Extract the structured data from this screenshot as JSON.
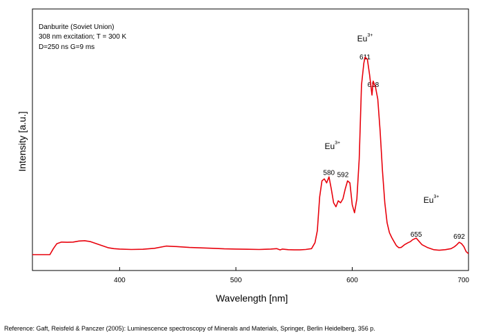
{
  "chart_data": {
    "type": "line",
    "xlabel": "Wavelength [nm]",
    "ylabel": "Intensity [a.u.]",
    "xlim": [
      325,
      700
    ],
    "ylim": [
      0,
      1.0
    ],
    "x_ticks": [
      "400",
      "500",
      "600",
      "700"
    ],
    "info_lines": [
      "Danburite (Soviet Union)",
      "308 nm excitation; T = 300 K",
      "D=250 ns G=9 ms"
    ],
    "annotations": [
      {
        "text": "611",
        "x": 611,
        "y": 0.98
      },
      {
        "text": "618",
        "x": 618,
        "y": 0.84
      },
      {
        "text": "580",
        "x": 580,
        "y": 0.4
      },
      {
        "text": "592",
        "x": 592,
        "y": 0.39
      },
      {
        "text": "655",
        "x": 655,
        "y": 0.09
      },
      {
        "text": "692",
        "x": 692,
        "y": 0.08
      }
    ],
    "ion_labels": [
      {
        "base": "Eu",
        "sup": "3+",
        "x": 611,
        "y": 1.07
      },
      {
        "base": "Eu",
        "sup": "3+",
        "x": 583,
        "y": 0.53
      },
      {
        "base": "Eu",
        "sup": "3+",
        "x": 668,
        "y": 0.26
      }
    ],
    "series": [
      {
        "color": "#e8000b",
        "x": [
          337,
          340,
          343,
          346,
          350,
          355,
          360,
          365,
          370,
          375,
          380,
          385,
          390,
          395,
          400,
          410,
          420,
          430,
          440,
          450,
          460,
          470,
          480,
          490,
          500,
          510,
          520,
          530,
          535,
          538,
          540,
          545,
          550,
          555,
          560,
          565,
          568,
          570,
          572,
          574,
          576,
          578,
          580,
          582,
          584,
          586,
          588,
          590,
          592,
          594,
          596,
          598,
          600,
          602,
          604,
          606,
          608,
          610,
          611,
          613,
          615,
          617,
          618,
          620,
          622,
          624,
          626,
          628,
          630,
          632,
          634,
          636,
          638,
          640,
          642,
          645,
          648,
          650,
          652,
          655,
          657,
          660,
          665,
          670,
          675,
          680,
          685,
          688,
          690,
          692,
          694,
          696,
          698,
          700
        ],
        "y": [
          0.0,
          0.0,
          0.03,
          0.055,
          0.063,
          0.062,
          0.063,
          0.068,
          0.07,
          0.065,
          0.055,
          0.045,
          0.035,
          0.03,
          0.028,
          0.026,
          0.027,
          0.032,
          0.043,
          0.04,
          0.036,
          0.034,
          0.032,
          0.029,
          0.028,
          0.027,
          0.026,
          0.028,
          0.03,
          0.024,
          0.028,
          0.025,
          0.024,
          0.024,
          0.026,
          0.03,
          0.06,
          0.12,
          0.29,
          0.37,
          0.38,
          0.36,
          0.39,
          0.33,
          0.26,
          0.24,
          0.27,
          0.26,
          0.28,
          0.33,
          0.37,
          0.36,
          0.25,
          0.21,
          0.28,
          0.48,
          0.85,
          0.96,
          0.99,
          0.98,
          0.9,
          0.8,
          0.87,
          0.84,
          0.78,
          0.62,
          0.42,
          0.26,
          0.16,
          0.11,
          0.085,
          0.065,
          0.045,
          0.035,
          0.036,
          0.05,
          0.06,
          0.065,
          0.075,
          0.083,
          0.07,
          0.05,
          0.035,
          0.025,
          0.022,
          0.025,
          0.03,
          0.04,
          0.05,
          0.062,
          0.055,
          0.04,
          0.015,
          0.005
        ]
      }
    ]
  },
  "reference_text": "Reference: Gaft, Reisfeld & Panczer (2005): Luminescence spectroscopy of Minerals and Materials, Springer, Berlin Heidelberg, 356 p."
}
